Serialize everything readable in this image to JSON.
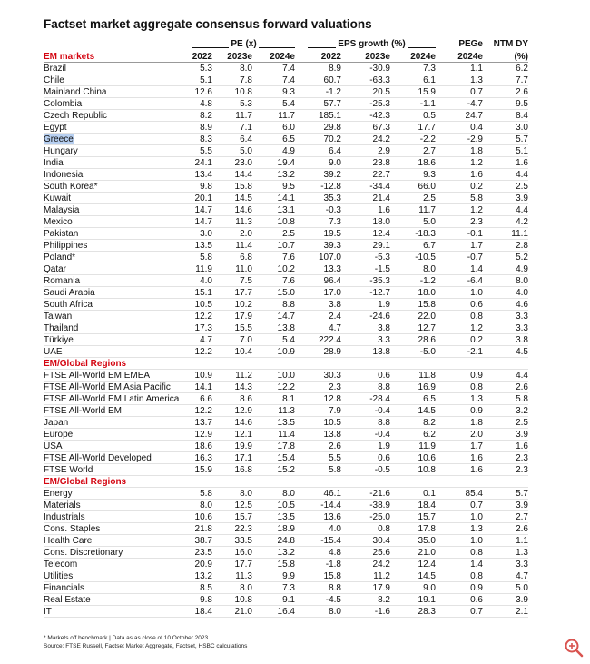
{
  "title": "Factset market aggregate consensus forward valuations",
  "header": {
    "groups": [
      "PE (x)",
      "EPS growth (%)"
    ],
    "single": [
      "PEGe",
      "NTM DY"
    ],
    "subcols": [
      "2022",
      "2023e",
      "2024e",
      "2022",
      "2023e",
      "2024e",
      "2024e",
      "(%)"
    ]
  },
  "sections": [
    {
      "title": "EM markets",
      "rows": [
        {
          "label": "Brazil",
          "values": [
            "5.3",
            "8.0",
            "7.4",
            "8.9",
            "-30.9",
            "7.3",
            "1.1",
            "6.2"
          ]
        },
        {
          "label": "Chile",
          "values": [
            "5.1",
            "7.8",
            "7.4",
            "60.7",
            "-63.3",
            "6.1",
            "1.3",
            "7.7"
          ]
        },
        {
          "label": "Mainland China",
          "values": [
            "12.6",
            "10.8",
            "9.3",
            "-1.2",
            "20.5",
            "15.9",
            "0.7",
            "2.6"
          ]
        },
        {
          "label": "Colombia",
          "values": [
            "4.8",
            "5.3",
            "5.4",
            "57.7",
            "-25.3",
            "-1.1",
            "-4.7",
            "9.5"
          ]
        },
        {
          "label": "Czech Republic",
          "values": [
            "8.2",
            "11.7",
            "11.7",
            "185.1",
            "-42.3",
            "0.5",
            "24.7",
            "8.4"
          ]
        },
        {
          "label": "Egypt",
          "values": [
            "8.9",
            "7.1",
            "6.0",
            "29.8",
            "67.3",
            "17.7",
            "0.4",
            "3.0"
          ]
        },
        {
          "label": "Greece",
          "values": [
            "8.3",
            "6.4",
            "6.5",
            "70.2",
            "24.2",
            "-2.2",
            "-2.9",
            "5.7"
          ]
        },
        {
          "label": "Hungary",
          "values": [
            "5.5",
            "5.0",
            "4.9",
            "6.4",
            "2.9",
            "2.7",
            "1.8",
            "5.1"
          ]
        },
        {
          "label": "India",
          "values": [
            "24.1",
            "23.0",
            "19.4",
            "9.0",
            "23.8",
            "18.6",
            "1.2",
            "1.6"
          ]
        },
        {
          "label": "Indonesia",
          "values": [
            "13.4",
            "14.4",
            "13.2",
            "39.2",
            "22.7",
            "9.3",
            "1.6",
            "4.4"
          ]
        },
        {
          "label": "South Korea*",
          "values": [
            "9.8",
            "15.8",
            "9.5",
            "-12.8",
            "-34.4",
            "66.0",
            "0.2",
            "2.5"
          ]
        },
        {
          "label": "Kuwait",
          "values": [
            "20.1",
            "14.5",
            "14.1",
            "35.3",
            "21.4",
            "2.5",
            "5.8",
            "3.9"
          ]
        },
        {
          "label": "Malaysia",
          "values": [
            "14.7",
            "14.6",
            "13.1",
            "-0.3",
            "1.6",
            "11.7",
            "1.2",
            "4.4"
          ]
        },
        {
          "label": "Mexico",
          "values": [
            "14.7",
            "11.3",
            "10.8",
            "7.3",
            "18.0",
            "5.0",
            "2.3",
            "4.2"
          ]
        },
        {
          "label": "Pakistan",
          "values": [
            "3.0",
            "2.0",
            "2.5",
            "19.5",
            "12.4",
            "-18.3",
            "-0.1",
            "11.1"
          ]
        },
        {
          "label": "Philippines",
          "values": [
            "13.5",
            "11.4",
            "10.7",
            "39.3",
            "29.1",
            "6.7",
            "1.7",
            "2.8"
          ]
        },
        {
          "label": "Poland*",
          "values": [
            "5.8",
            "6.8",
            "7.6",
            "107.0",
            "-5.3",
            "-10.5",
            "-0.7",
            "5.2"
          ]
        },
        {
          "label": "Qatar",
          "values": [
            "11.9",
            "11.0",
            "10.2",
            "13.3",
            "-1.5",
            "8.0",
            "1.4",
            "4.9"
          ]
        },
        {
          "label": "Romania",
          "values": [
            "4.0",
            "7.5",
            "7.6",
            "96.4",
            "-35.3",
            "-1.2",
            "-6.4",
            "8.0"
          ]
        },
        {
          "label": "Saudi Arabia",
          "values": [
            "15.1",
            "17.7",
            "15.0",
            "17.0",
            "-12.7",
            "18.0",
            "1.0",
            "4.0"
          ]
        },
        {
          "label": "South Africa",
          "values": [
            "10.5",
            "10.2",
            "8.8",
            "3.8",
            "1.9",
            "15.8",
            "0.6",
            "4.6"
          ]
        },
        {
          "label": "Taiwan",
          "values": [
            "12.2",
            "17.9",
            "14.7",
            "2.4",
            "-24.6",
            "22.0",
            "0.8",
            "3.3"
          ]
        },
        {
          "label": "Thailand",
          "values": [
            "17.3",
            "15.5",
            "13.8",
            "4.7",
            "3.8",
            "12.7",
            "1.2",
            "3.3"
          ]
        },
        {
          "label": "Türkiye",
          "values": [
            "4.7",
            "7.0",
            "5.4",
            "222.4",
            "3.3",
            "28.6",
            "0.2",
            "3.8"
          ]
        },
        {
          "label": "UAE",
          "values": [
            "12.2",
            "10.4",
            "10.9",
            "28.9",
            "13.8",
            "-5.0",
            "-2.1",
            "4.5"
          ]
        }
      ]
    },
    {
      "title": "EM/Global Regions",
      "rows": [
        {
          "label": "FTSE All-World EM EMEA",
          "values": [
            "10.9",
            "11.2",
            "10.0",
            "30.3",
            "0.6",
            "11.8",
            "0.9",
            "4.4"
          ]
        },
        {
          "label": "FTSE All-World EM Asia Pacific",
          "values": [
            "14.1",
            "14.3",
            "12.2",
            "2.3",
            "8.8",
            "16.9",
            "0.8",
            "2.6"
          ]
        },
        {
          "label": "FTSE All-World EM Latin America",
          "values": [
            "6.6",
            "8.6",
            "8.1",
            "12.8",
            "-28.4",
            "6.5",
            "1.3",
            "5.8"
          ]
        },
        {
          "label": "FTSE All-World EM",
          "values": [
            "12.2",
            "12.9",
            "11.3",
            "7.9",
            "-0.4",
            "14.5",
            "0.9",
            "3.2"
          ]
        },
        {
          "label": "Japan",
          "values": [
            "13.7",
            "14.6",
            "13.5",
            "10.5",
            "8.8",
            "8.2",
            "1.8",
            "2.5"
          ]
        },
        {
          "label": "Europe",
          "values": [
            "12.9",
            "12.1",
            "11.4",
            "13.8",
            "-0.4",
            "6.2",
            "2.0",
            "3.9"
          ]
        },
        {
          "label": "USA",
          "values": [
            "18.6",
            "19.9",
            "17.8",
            "2.6",
            "1.9",
            "11.9",
            "1.7",
            "1.6"
          ]
        },
        {
          "label": "FTSE All-World Developed",
          "values": [
            "16.3",
            "17.1",
            "15.4",
            "5.5",
            "0.6",
            "10.6",
            "1.6",
            "2.3"
          ]
        },
        {
          "label": "FTSE World",
          "values": [
            "15.9",
            "16.8",
            "15.2",
            "5.8",
            "-0.5",
            "10.8",
            "1.6",
            "2.3"
          ]
        }
      ]
    },
    {
      "title": "EM/Global Regions",
      "rows": [
        {
          "label": "Energy",
          "values": [
            "5.8",
            "8.0",
            "8.0",
            "46.1",
            "-21.6",
            "0.1",
            "85.4",
            "5.7"
          ]
        },
        {
          "label": "Materials",
          "values": [
            "8.0",
            "12.5",
            "10.5",
            "-14.4",
            "-38.9",
            "18.4",
            "0.7",
            "3.9"
          ]
        },
        {
          "label": "Industrials",
          "values": [
            "10.6",
            "15.7",
            "13.5",
            "13.6",
            "-25.0",
            "15.7",
            "1.0",
            "2.7"
          ]
        },
        {
          "label": "Cons. Staples",
          "values": [
            "21.8",
            "22.3",
            "18.9",
            "4.0",
            "0.8",
            "17.8",
            "1.3",
            "2.6"
          ]
        },
        {
          "label": "Health Care",
          "values": [
            "38.7",
            "33.5",
            "24.8",
            "-15.4",
            "30.4",
            "35.0",
            "1.0",
            "1.1"
          ]
        },
        {
          "label": "Cons. Discretionary",
          "values": [
            "23.5",
            "16.0",
            "13.2",
            "4.8",
            "25.6",
            "21.0",
            "0.8",
            "1.3"
          ]
        },
        {
          "label": "Telecom",
          "values": [
            "20.9",
            "17.7",
            "15.8",
            "-1.8",
            "24.2",
            "12.4",
            "1.4",
            "3.3"
          ]
        },
        {
          "label": "Utilities",
          "values": [
            "13.2",
            "11.3",
            "9.9",
            "15.8",
            "11.2",
            "14.5",
            "0.8",
            "4.7"
          ]
        },
        {
          "label": "Financials",
          "values": [
            "8.5",
            "8.0",
            "7.3",
            "8.8",
            "17.9",
            "9.0",
            "0.9",
            "5.0"
          ]
        },
        {
          "label": "Real Estate",
          "values": [
            "9.8",
            "10.8",
            "9.1",
            "-4.5",
            "8.2",
            "19.1",
            "0.6",
            "3.9"
          ]
        },
        {
          "label": "IT",
          "values": [
            "18.4",
            "21.0",
            "16.4",
            "8.0",
            "-1.6",
            "28.3",
            "0.7",
            "2.1"
          ]
        }
      ]
    }
  ],
  "footnotes": [
    "* Markets off benchmark | Data as as close of 10 October 2023",
    "Source: FTSE Russell, Factset Market Aggregate, Factset, HSBC calculations"
  ]
}
